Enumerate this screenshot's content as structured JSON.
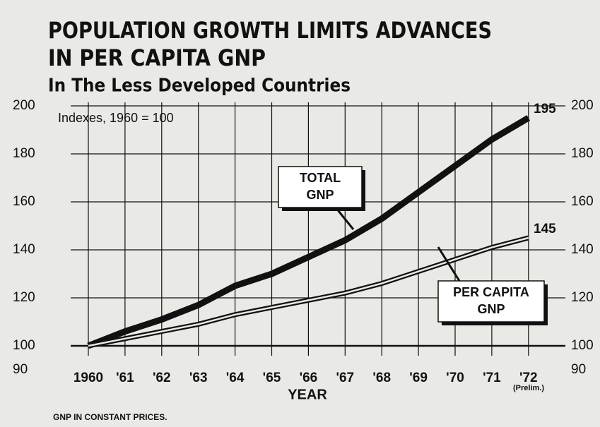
{
  "chart_data": {
    "type": "line",
    "title": [
      "POPULATION GROWTH LIMITS ADVANCES",
      "IN PER CAPITA GNP"
    ],
    "subtitle": "In The Less Developed Countries",
    "note": "Indexes, 1960 = 100",
    "x_label": "YEAR",
    "x_annotation": "(Prelim.)",
    "footnote": "GNP IN CONSTANT PRICES.",
    "categories": [
      "1960",
      "'61",
      "'62",
      "'63",
      "'64",
      "'65",
      "'66",
      "'67",
      "'68",
      "'69",
      "'70",
      "'71",
      "'72"
    ],
    "series": [
      {
        "name": [
          "TOTAL",
          "GNP"
        ],
        "color": "#111111",
        "style": "thick",
        "values": [
          100,
          106,
          111,
          117,
          125,
          130,
          137,
          144,
          153,
          164,
          175,
          186,
          195
        ]
      },
      {
        "name": [
          "PER CAPITA",
          "GNP"
        ],
        "color": "#111111",
        "style": "double",
        "values": [
          100,
          103,
          106,
          109,
          113,
          116,
          119,
          122,
          126,
          131,
          136,
          141,
          145
        ]
      }
    ],
    "ylim": [
      90,
      200
    ],
    "yticks": [
      90,
      100,
      120,
      140,
      160,
      180,
      200
    ],
    "grid": true
  }
}
